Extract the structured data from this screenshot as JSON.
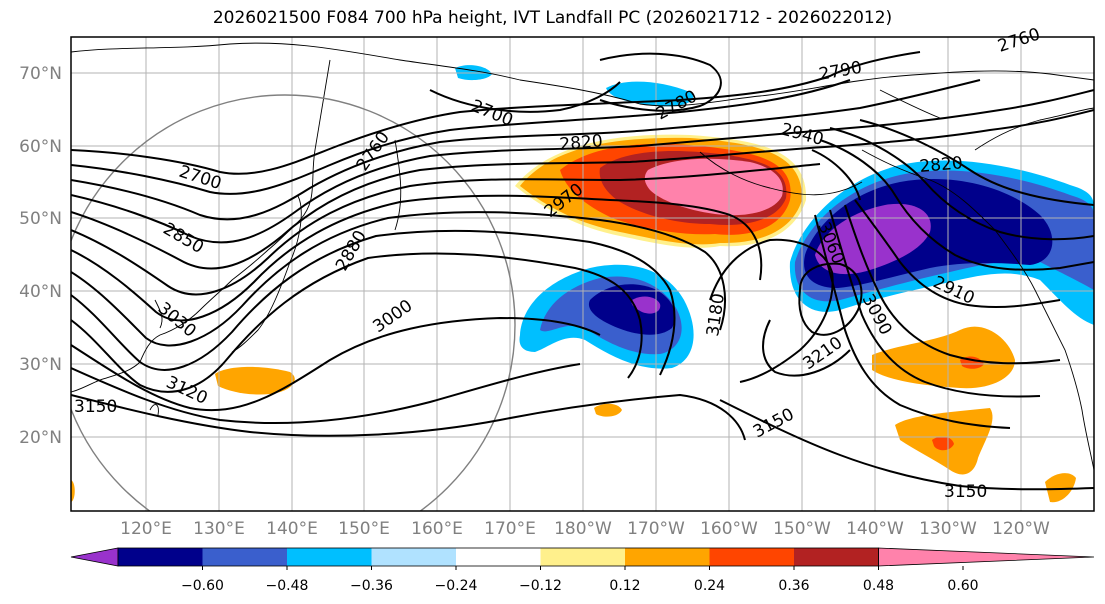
{
  "title": "2026021500 F084 700 hPa height, IVT Landfall PC (2026021712 - 2026022012)",
  "lat_labels": [
    "70°N",
    "60°N",
    "50°N",
    "40°N",
    "30°N",
    "20°N"
  ],
  "lon_labels": [
    "120°E",
    "130°E",
    "140°E",
    "150°E",
    "160°E",
    "170°E",
    "180°W",
    "170°W",
    "160°W",
    "150°W",
    "140°W",
    "130°W",
    "120°W"
  ],
  "contour_labels": [
    "2760",
    "2790",
    "2700",
    "2780",
    "2820",
    "2940",
    "2700",
    "2760",
    "2820",
    "2970",
    "3060",
    "2850",
    "2880",
    "3000",
    "3030",
    "3090",
    "2910",
    "3180",
    "3210",
    "3120",
    "3150",
    "3150",
    "3150"
  ],
  "colorbar": {
    "tick_labels": [
      "−0.60",
      "−0.48",
      "−0.36",
      "−0.24",
      "−0.12",
      "0.12",
      "0.24",
      "0.36",
      "0.48",
      "0.60"
    ],
    "colors": [
      "#9932cc",
      "#00008b",
      "#3a5fcd",
      "#00bfff",
      "#b0e2ff",
      "#ffffff",
      "#fff08c",
      "#ffa500",
      "#ff4500",
      "#b22222",
      "#ff82ab"
    ]
  }
}
